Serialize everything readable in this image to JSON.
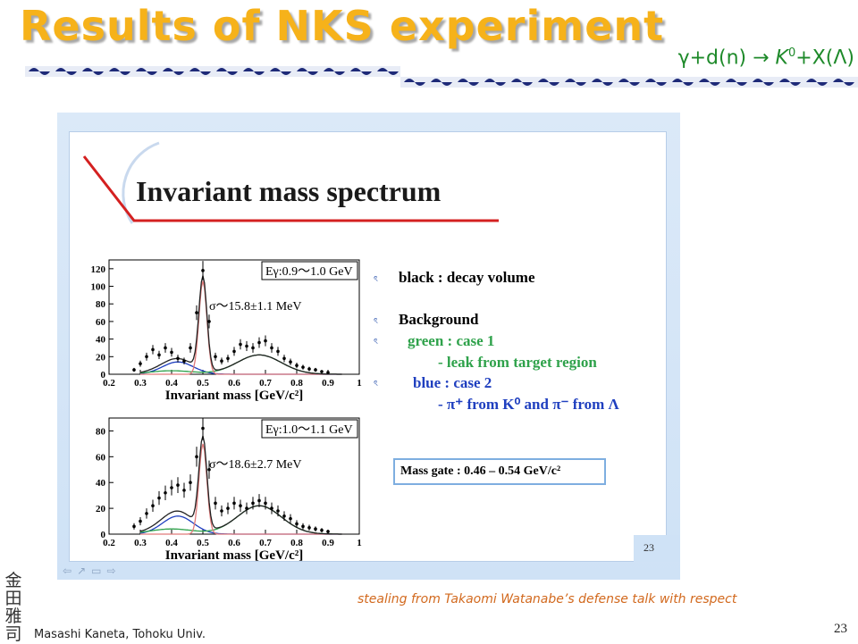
{
  "header": {
    "title": "Results of NKS experiment",
    "reaction_prefix": "γ+d(n) → ",
    "reaction_k": "K",
    "reaction_sup": "0",
    "reaction_suffix": "+X(Λ)"
  },
  "slide": {
    "title": "Invariant mass spectrum",
    "page_number": "23",
    "nav_icons": [
      "arrow-left-icon",
      "pen-icon",
      "menu-icon",
      "arrow-right-icon"
    ]
  },
  "legend": {
    "black": "black : decay volume",
    "background": "Background",
    "green_case": "green : case 1",
    "green_desc": "- leak from target region",
    "blue_case": "blue : case 2",
    "blue_desc": "- π⁺ from K⁰  and  π⁻ from Λ",
    "mass_gate": "Mass gate : 0.46 – 0.54 GeV/c²",
    "colors": {
      "green": "#2fa24b",
      "blue": "#1f3fbf",
      "black": "#000000"
    }
  },
  "chart_data": [
    {
      "type": "scatter",
      "energy_label": "Eγ:0.9〜1.0 GeV",
      "sigma_label": "σ〜15.8±1.1 MeV",
      "xlabel": "Invariant mass [GeV/c²]",
      "xlim": [
        0.2,
        1.0
      ],
      "ylim": [
        0,
        130
      ],
      "xticks": [
        "0.2",
        "0.3",
        "0.4",
        "0.5",
        "0.6",
        "0.7",
        "0.8",
        "0.9",
        "1"
      ],
      "yticks": [
        "0",
        "20",
        "40",
        "60",
        "80",
        "100",
        "120"
      ],
      "x": [
        0.28,
        0.3,
        0.32,
        0.34,
        0.36,
        0.38,
        0.4,
        0.42,
        0.44,
        0.46,
        0.48,
        0.5,
        0.52,
        0.54,
        0.56,
        0.58,
        0.6,
        0.62,
        0.64,
        0.66,
        0.68,
        0.7,
        0.72,
        0.74,
        0.76,
        0.78,
        0.8,
        0.82,
        0.84,
        0.86,
        0.88,
        0.9
      ],
      "y": [
        5,
        12,
        20,
        28,
        22,
        30,
        25,
        18,
        15,
        30,
        70,
        118,
        60,
        20,
        15,
        18,
        26,
        34,
        32,
        30,
        36,
        38,
        30,
        26,
        18,
        14,
        10,
        8,
        6,
        5,
        3,
        2
      ]
    },
    {
      "type": "scatter",
      "energy_label": "Eγ:1.0〜1.1 GeV",
      "sigma_label": "σ〜18.6±2.7 MeV",
      "xlabel": "Invariant mass [GeV/c²]",
      "xlim": [
        0.2,
        1.0
      ],
      "ylim": [
        0,
        90
      ],
      "xticks": [
        "0.2",
        "0.3",
        "0.4",
        "0.5",
        "0.6",
        "0.7",
        "0.8",
        "0.9",
        "1"
      ],
      "yticks": [
        "0",
        "20",
        "40",
        "60",
        "80"
      ],
      "x": [
        0.28,
        0.3,
        0.32,
        0.34,
        0.36,
        0.38,
        0.4,
        0.42,
        0.44,
        0.46,
        0.48,
        0.5,
        0.52,
        0.54,
        0.56,
        0.58,
        0.6,
        0.62,
        0.64,
        0.66,
        0.68,
        0.7,
        0.72,
        0.74,
        0.76,
        0.78,
        0.8,
        0.82,
        0.84,
        0.86,
        0.88,
        0.9
      ],
      "y": [
        6,
        10,
        16,
        22,
        28,
        32,
        36,
        38,
        34,
        40,
        60,
        82,
        50,
        24,
        18,
        20,
        24,
        22,
        20,
        24,
        26,
        24,
        20,
        18,
        14,
        12,
        8,
        6,
        5,
        4,
        3,
        2
      ]
    }
  ],
  "footer": {
    "credit": "stealing from Takaomi Watanabe’s defense talk with respect",
    "name": "Masashi Kaneta, Tohoku Univ.",
    "page_number": "23",
    "seal_chars": [
      "金",
      "田",
      "雅",
      "司"
    ]
  }
}
